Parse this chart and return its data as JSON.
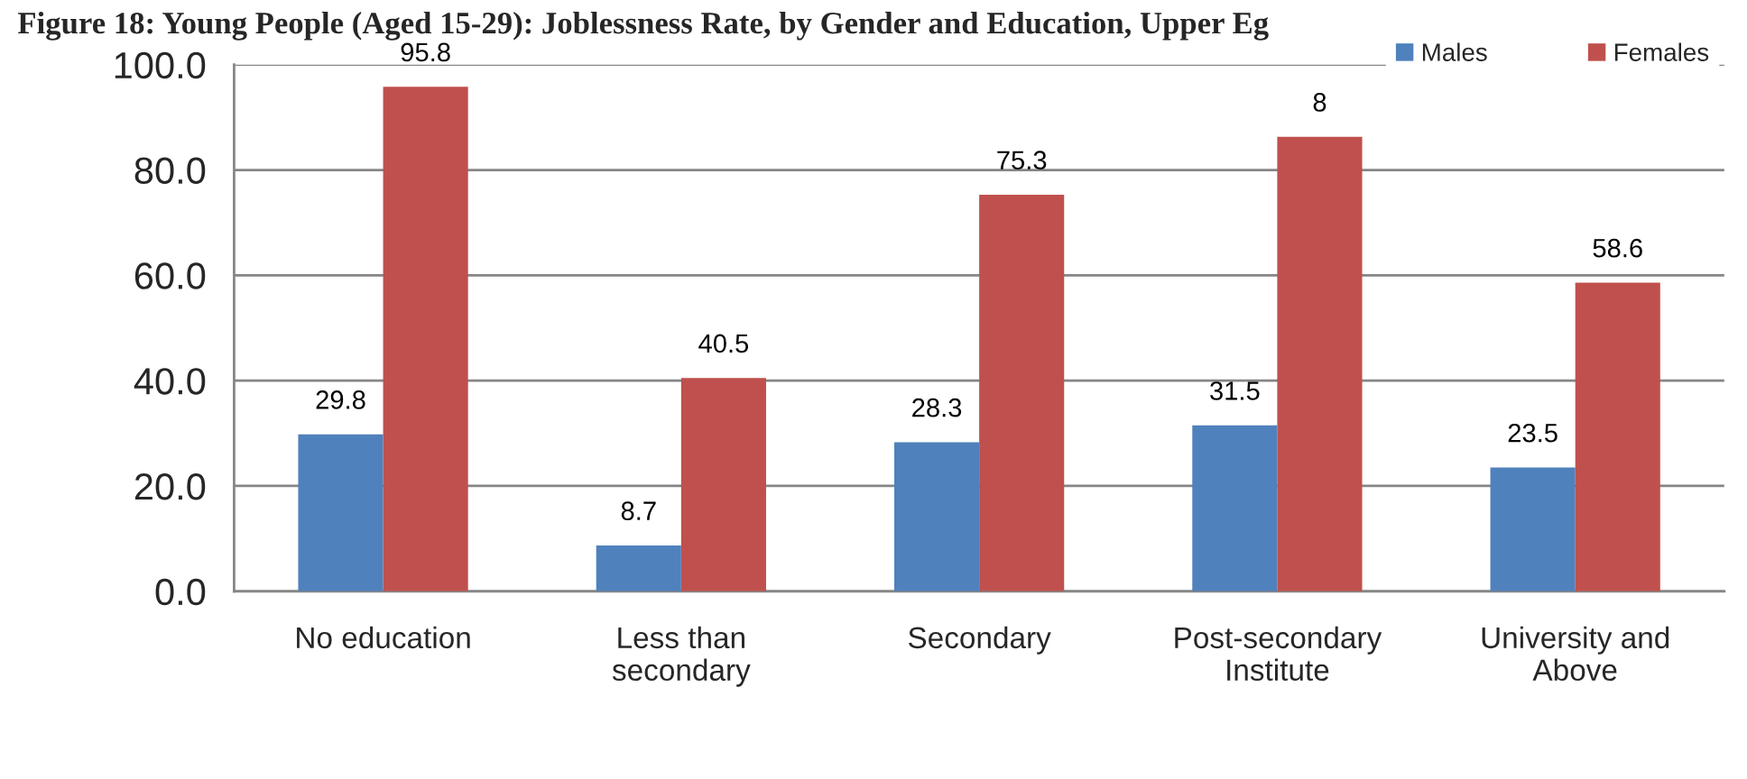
{
  "chart_data": {
    "type": "bar",
    "title": "Figure 18: Young People (Aged 15-29): Joblessness Rate, by Gender and Education, Upper Eg",
    "categories": [
      "No education",
      "Less than\nsecondary",
      "Secondary",
      "Post-secondary\nInstitute",
      "University and\nAbove"
    ],
    "series": [
      {
        "name": "Males",
        "color": "#4f81bd",
        "values": [
          29.8,
          8.7,
          28.3,
          31.5,
          23.5
        ],
        "value_labels": [
          "29.8",
          "8.7",
          "28.3",
          "31.5",
          "23.5"
        ]
      },
      {
        "name": "Females",
        "color": "#c0504d",
        "values": [
          95.8,
          40.5,
          75.3,
          86.3,
          58.6
        ],
        "value_labels": [
          "95.8",
          "40.5",
          "75.3",
          null,
          "58.6"
        ]
      }
    ],
    "annotations": [
      {
        "text": "8",
        "x": "Post-secondary\nInstitute",
        "y": 86.3
      }
    ],
    "ylim": [
      0,
      100
    ],
    "yticks": [
      {
        "value": 0,
        "label": "0.0"
      },
      {
        "value": 20,
        "label": "20.0"
      },
      {
        "value": 40,
        "label": "40.0"
      },
      {
        "value": 60,
        "label": "60.0"
      },
      {
        "value": 80,
        "label": "80.0"
      },
      {
        "value": 100,
        "label": "100.0"
      }
    ],
    "grid": "y",
    "legend": "top right"
  }
}
